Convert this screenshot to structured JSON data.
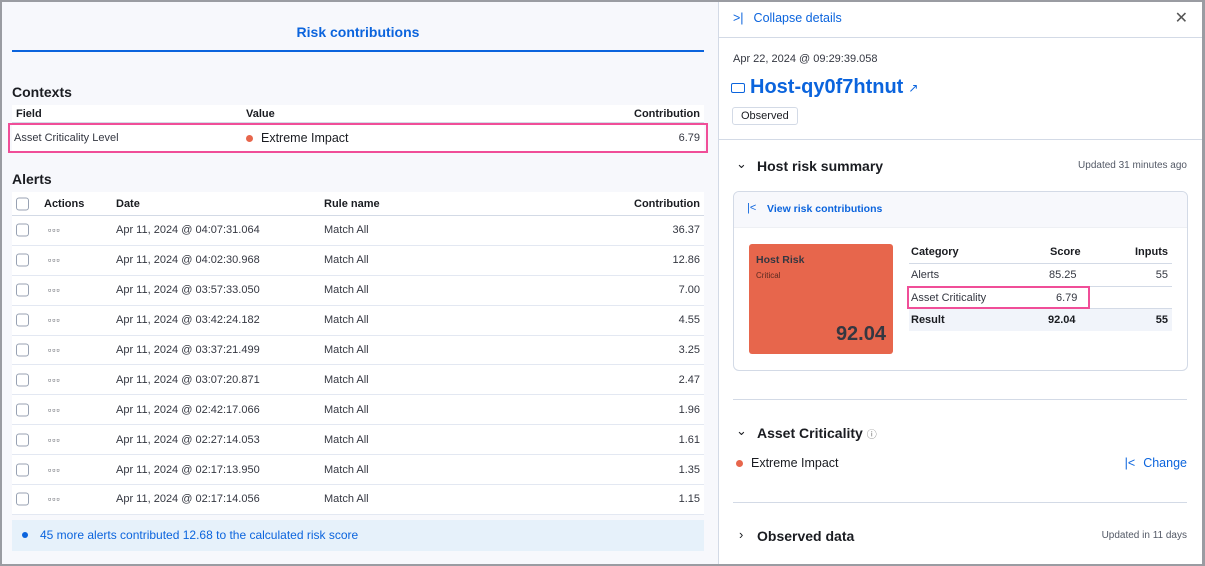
{
  "left": {
    "title": "Risk contributions",
    "contexts": {
      "heading": "Contexts",
      "columns": [
        "Field",
        "Value",
        "Contribution"
      ],
      "row": {
        "field": "Asset Criticality Level",
        "value": "Extreme Impact",
        "contribution": "6.79"
      }
    },
    "alerts": {
      "heading": "Alerts",
      "columns": [
        "Actions",
        "Date",
        "Rule name",
        "Contribution"
      ],
      "rows": [
        {
          "date": "Apr 11, 2024 @ 04:07:31.064",
          "rule": "Match All",
          "contribution": "36.37"
        },
        {
          "date": "Apr 11, 2024 @ 04:02:30.968",
          "rule": "Match All",
          "contribution": "12.86"
        },
        {
          "date": "Apr 11, 2024 @ 03:57:33.050",
          "rule": "Match All",
          "contribution": "7.00"
        },
        {
          "date": "Apr 11, 2024 @ 03:42:24.182",
          "rule": "Match All",
          "contribution": "4.55"
        },
        {
          "date": "Apr 11, 2024 @ 03:37:21.499",
          "rule": "Match All",
          "contribution": "3.25"
        },
        {
          "date": "Apr 11, 2024 @ 03:07:20.871",
          "rule": "Match All",
          "contribution": "2.47"
        },
        {
          "date": "Apr 11, 2024 @ 02:42:17.066",
          "rule": "Match All",
          "contribution": "1.96"
        },
        {
          "date": "Apr 11, 2024 @ 02:27:14.053",
          "rule": "Match All",
          "contribution": "1.61"
        },
        {
          "date": "Apr 11, 2024 @ 02:17:13.950",
          "rule": "Match All",
          "contribution": "1.35"
        },
        {
          "date": "Apr 11, 2024 @ 02:17:14.056",
          "rule": "Match All",
          "contribution": "1.15"
        }
      ],
      "more": "45 more alerts contributed 12.68 to the calculated risk score"
    }
  },
  "right": {
    "collapse": "Collapse details",
    "timestamp": "Apr 22, 2024 @ 09:29:39.058",
    "host": "Host-qy0f7htnut",
    "badge": "Observed",
    "summary": {
      "title": "Host risk summary",
      "updated": "Updated 31 minutes ago",
      "view_link": "View risk contributions",
      "risk_label": "Host Risk",
      "risk_level": "Critical",
      "risk_score": "92.04",
      "risk_color": "#e7664c",
      "columns": [
        "Category",
        "Score",
        "Inputs"
      ],
      "rows": [
        {
          "category": "Alerts",
          "score": "85.25",
          "inputs": "55"
        },
        {
          "category": "Asset Criticality",
          "score": "6.79",
          "inputs": ""
        }
      ],
      "result": {
        "category": "Result",
        "score": "92.04",
        "inputs": "55"
      }
    },
    "criticality": {
      "title": "Asset Criticality",
      "value": "Extreme Impact",
      "change": "Change"
    },
    "observed": {
      "title": "Observed data",
      "updated": "Updated in 11 days"
    }
  }
}
